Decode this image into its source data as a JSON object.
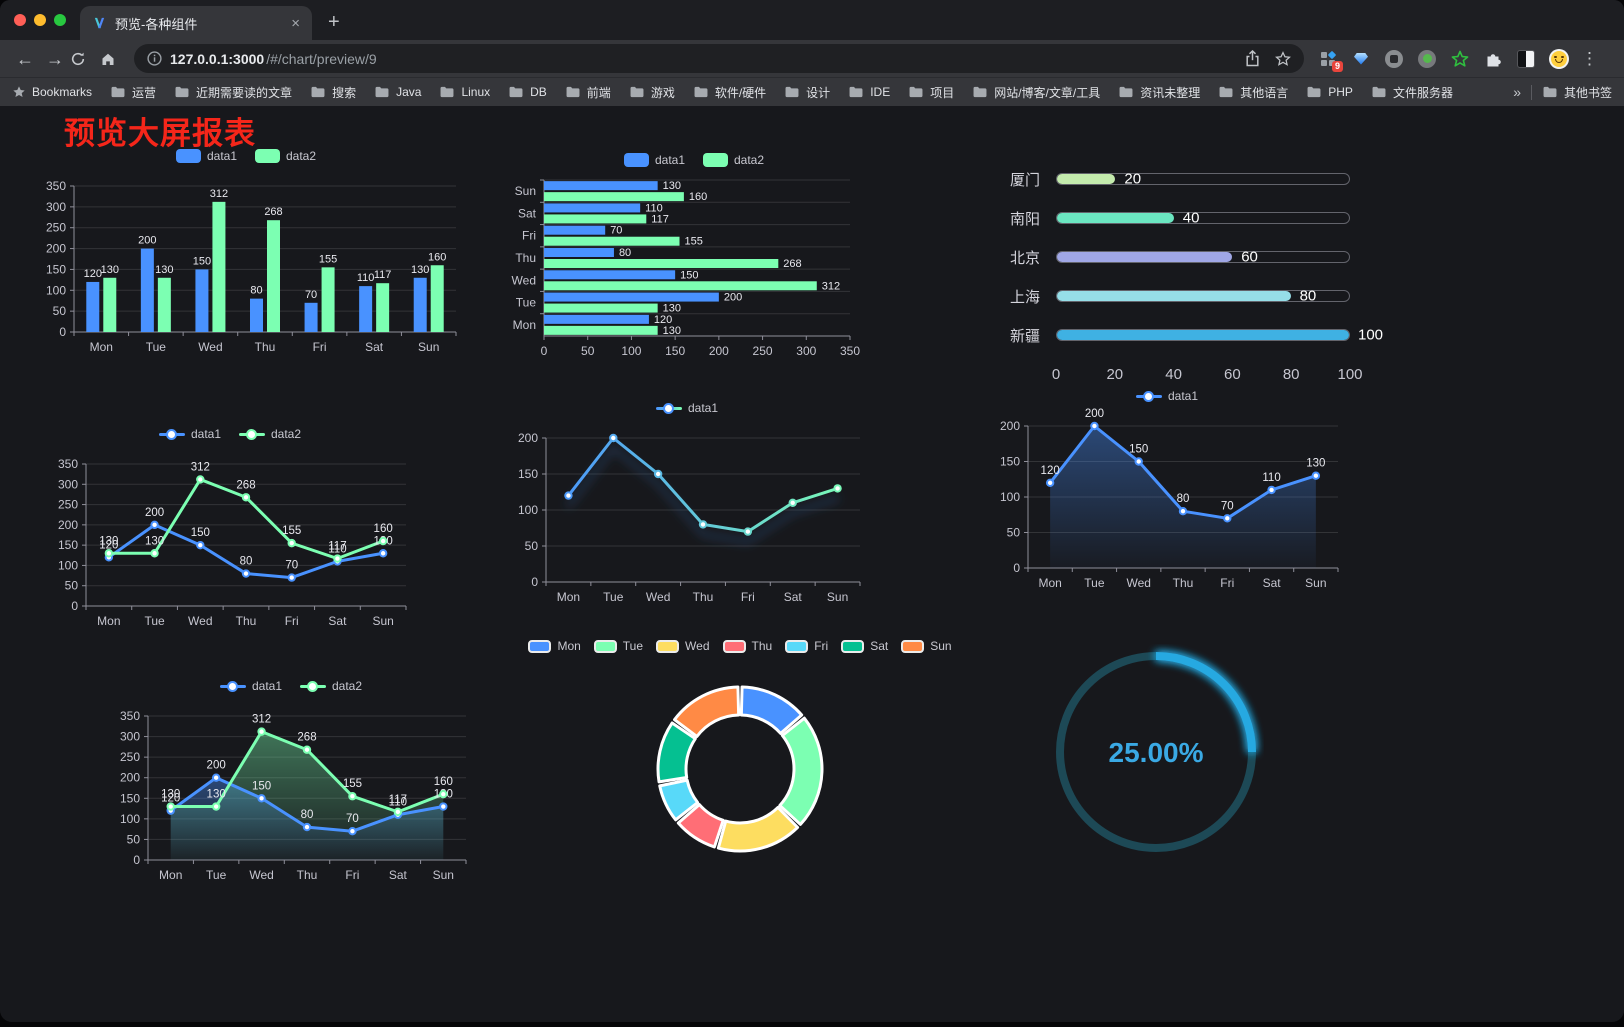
{
  "browser": {
    "tab_title": "预览-各种组件",
    "close_tab_label": "×",
    "new_tab_label": "+",
    "url_host": "127.0.0.1:3000",
    "url_path": "/#/chart/preview/9",
    "bookmarks_label": "Bookmarks",
    "bookmark_folders": [
      "运营",
      "近期需要读的文章",
      "搜索",
      "Java",
      "Linux",
      "DB",
      "前端",
      "游戏",
      "软件/硬件",
      "设计",
      "IDE",
      "项目",
      "网站/博客/文章/工具",
      "资讯未整理",
      "其他语言",
      "PHP",
      "文件服务器"
    ],
    "bookmarks_overflow": "»",
    "other_bookmarks_label": "其他书签",
    "extension_badge": "9",
    "menu_icon": "⋮"
  },
  "page": {
    "title": "预览大屏报表",
    "title_color": "#f5261a",
    "background": "#17181c"
  },
  "chart_data": [
    {
      "type": "bar",
      "categories": [
        "Mon",
        "Tue",
        "Wed",
        "Thu",
        "Fri",
        "Sat",
        "Sun"
      ],
      "series": [
        {
          "name": "data1",
          "color": "#4992ff",
          "values": [
            120,
            200,
            150,
            80,
            70,
            110,
            130
          ]
        },
        {
          "name": "data2",
          "color": "#7cffb2",
          "values": [
            130,
            130,
            312,
            268,
            155,
            117,
            160
          ]
        }
      ],
      "ylim": [
        0,
        350
      ],
      "ystep": 50,
      "labels": true,
      "legend_style": "rect",
      "grid": true
    },
    {
      "type": "barh",
      "categories": [
        "Mon",
        "Tue",
        "Wed",
        "Thu",
        "Fri",
        "Sat",
        "Sun"
      ],
      "series": [
        {
          "name": "data1",
          "color": "#4992ff",
          "values": [
            120,
            200,
            150,
            80,
            70,
            110,
            130
          ]
        },
        {
          "name": "data2",
          "color": "#7cffb2",
          "values": [
            130,
            130,
            312,
            268,
            155,
            117,
            160
          ]
        }
      ],
      "xlim": [
        0,
        350
      ],
      "xstep": 50,
      "labels": true,
      "legend_style": "rect",
      "grid": true
    },
    {
      "type": "progress",
      "max": 100,
      "axis_ticks": [
        0,
        20,
        40,
        60,
        80,
        100
      ],
      "items": [
        {
          "label": "厦门",
          "value": 20,
          "color": "#c4ebad"
        },
        {
          "label": "南阳",
          "value": 40,
          "color": "#6be6c1"
        },
        {
          "label": "北京",
          "value": 60,
          "color": "#a0a7e6"
        },
        {
          "label": "上海",
          "value": 80,
          "color": "#96dee8"
        },
        {
          "label": "新疆",
          "value": 100,
          "color": "#3fb1e3"
        }
      ]
    },
    {
      "type": "line",
      "categories": [
        "Mon",
        "Tue",
        "Wed",
        "Thu",
        "Fri",
        "Sat",
        "Sun"
      ],
      "series": [
        {
          "name": "data1",
          "color": "#4992ff",
          "values": [
            120,
            200,
            150,
            80,
            70,
            110,
            130
          ]
        },
        {
          "name": "data2",
          "color": "#7cffb2",
          "values": [
            130,
            130,
            312,
            268,
            155,
            117,
            160
          ]
        }
      ],
      "ylim": [
        0,
        350
      ],
      "ystep": 50,
      "labels": true,
      "legend_style": "line",
      "grid": true
    },
    {
      "type": "line",
      "categories": [
        "Mon",
        "Tue",
        "Wed",
        "Thu",
        "Fri",
        "Sat",
        "Sun"
      ],
      "series": [
        {
          "name": "data1",
          "color": "#4992ff",
          "values": [
            120,
            200,
            150,
            80,
            70,
            110,
            130
          ]
        }
      ],
      "ylim": [
        0,
        200
      ],
      "ystep": 50,
      "labels": false,
      "legend_style": "line",
      "gradient": [
        "#4992ff",
        "#7cffb2"
      ],
      "shadow": true,
      "grid": true
    },
    {
      "type": "line",
      "categories": [
        "Mon",
        "Tue",
        "Wed",
        "Thu",
        "Fri",
        "Sat",
        "Sun"
      ],
      "series": [
        {
          "name": "data1",
          "color": "#4992ff",
          "values": [
            120,
            200,
            150,
            80,
            70,
            110,
            130
          ],
          "area": true
        }
      ],
      "ylim": [
        0,
        200
      ],
      "ystep": 50,
      "labels": true,
      "legend_style": "line",
      "grid": true
    },
    {
      "type": "line",
      "categories": [
        "Mon",
        "Tue",
        "Wed",
        "Thu",
        "Fri",
        "Sat",
        "Sun"
      ],
      "series": [
        {
          "name": "data1",
          "color": "#4992ff",
          "values": [
            120,
            200,
            150,
            80,
            70,
            110,
            130
          ],
          "area": true
        },
        {
          "name": "data2",
          "color": "#7cffb2",
          "values": [
            130,
            130,
            312,
            268,
            155,
            117,
            160
          ],
          "area": true
        }
      ],
      "ylim": [
        0,
        350
      ],
      "ystep": 50,
      "labels": true,
      "legend_style": "line",
      "grid": true
    },
    {
      "type": "donut",
      "labels": [
        "Mon",
        "Tue",
        "Wed",
        "Thu",
        "Fri",
        "Sat",
        "Sun"
      ],
      "values": [
        120,
        200,
        150,
        80,
        70,
        110,
        130
      ],
      "colors": [
        "#4992ff",
        "#7cffb2",
        "#fddd60",
        "#ff6e76",
        "#58d9f9",
        "#05c091",
        "#ff8a45"
      ],
      "border_color": "#ffffff",
      "legend_style": "bordered",
      "legend_position": "top"
    },
    {
      "type": "gauge",
      "value": 25,
      "max": 100,
      "display": "25.00%",
      "color": "#28a9e1",
      "track": "#1d4956",
      "text_color": "#3aa9e4"
    }
  ]
}
